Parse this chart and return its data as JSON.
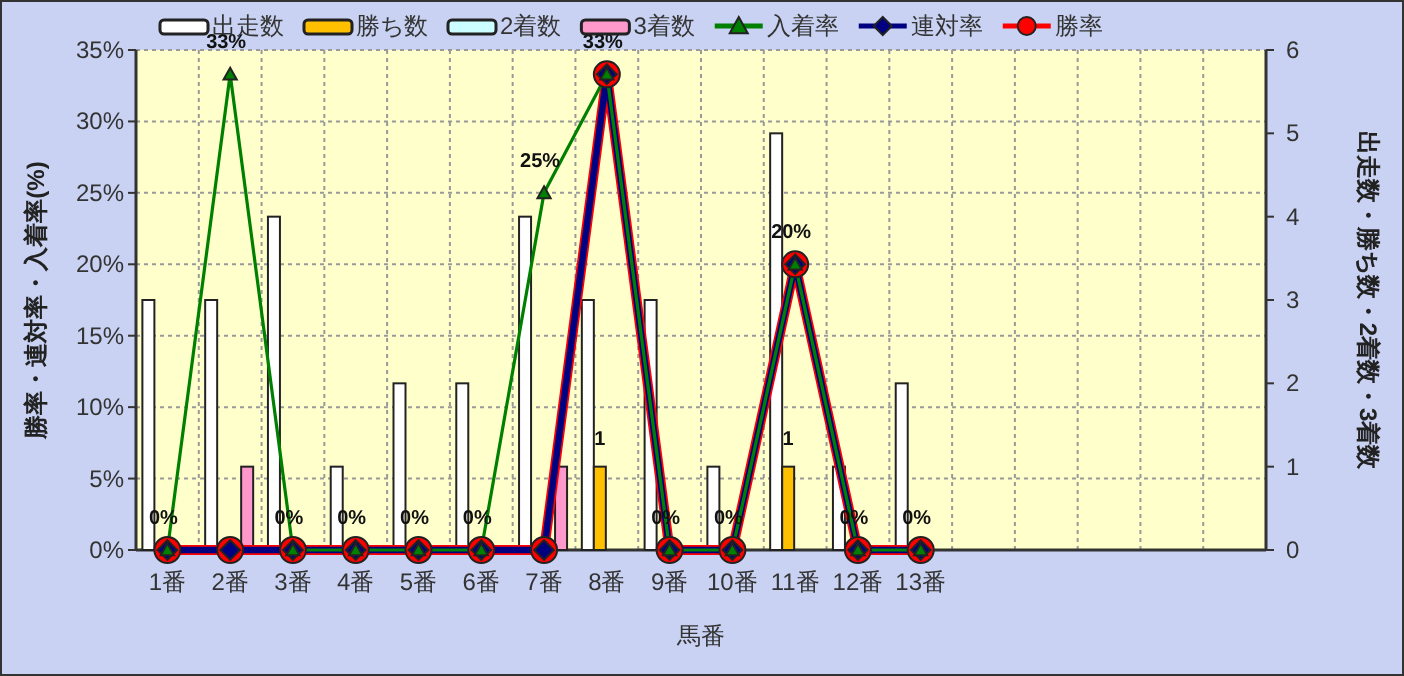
{
  "chart_data": {
    "type": "bar",
    "xlabel": "馬番",
    "ylabel": "勝率・連対率・入着率(%)",
    "y2label": "出走数・勝ち数・2着数・3着数",
    "categories": [
      "1番",
      "2番",
      "3番",
      "4番",
      "5番",
      "6番",
      "7番",
      "8番",
      "9番",
      "10番",
      "11番",
      "12番",
      "13番",
      null,
      null,
      null,
      null,
      null
    ],
    "series": [
      {
        "name": "出走数",
        "axis": "y2",
        "color": "#ffffff",
        "values": [
          3,
          3,
          4,
          1,
          2,
          2,
          4,
          3,
          3,
          1,
          5,
          1,
          2,
          null,
          null,
          null,
          null,
          null
        ]
      },
      {
        "name": "勝ち数",
        "axis": "y2",
        "color": "#ffc000",
        "values": [
          0,
          0,
          0,
          0,
          0,
          0,
          0,
          1,
          0,
          0,
          1,
          0,
          0,
          null,
          null,
          null,
          null,
          null
        ],
        "value_labels": [
          null,
          null,
          null,
          null,
          null,
          null,
          null,
          "1",
          null,
          null,
          "1",
          null,
          null,
          null,
          null,
          null,
          null,
          null
        ]
      },
      {
        "name": "2着数",
        "axis": "y2",
        "color": "#ccffff",
        "values": [
          0,
          0,
          0,
          0,
          0,
          0,
          0,
          0,
          0,
          0,
          0,
          0,
          0,
          null,
          null,
          null,
          null,
          null
        ]
      },
      {
        "name": "3着数",
        "axis": "y2",
        "color": "#ff99cc",
        "values": [
          0,
          1,
          0,
          0,
          0,
          0,
          1,
          0,
          0,
          0,
          0,
          0,
          0,
          null,
          null,
          null,
          null,
          null
        ]
      },
      {
        "name": "入着率",
        "type": "line",
        "axis": "y",
        "marker": "triangle",
        "color": "#008000",
        "values": [
          0,
          33.3,
          0,
          0,
          0,
          0,
          25,
          33.3,
          0,
          0,
          20,
          0,
          0,
          null,
          null,
          null,
          null,
          null
        ],
        "value_labels": [
          "0%",
          "33%",
          "0%",
          "0%",
          "0%",
          "0%",
          "25%",
          "33%",
          "0%",
          "0%",
          "20%",
          "0%",
          "0%",
          null,
          null,
          null,
          null,
          null
        ]
      },
      {
        "name": "連対率",
        "type": "line",
        "axis": "y",
        "marker": "diamond",
        "color": "#000080",
        "values": [
          0,
          0,
          0,
          0,
          0,
          0,
          0,
          33.3,
          0,
          0,
          20,
          0,
          0,
          null,
          null,
          null,
          null,
          null
        ]
      },
      {
        "name": "勝率",
        "type": "line",
        "axis": "y",
        "marker": "circle",
        "color": "#ff0000",
        "values": [
          0,
          0,
          0,
          0,
          0,
          0,
          0,
          33.3,
          0,
          0,
          20,
          0,
          0,
          null,
          null,
          null,
          null,
          null
        ]
      }
    ],
    "ylim": [
      0,
      35
    ],
    "yticks": [
      {
        "value": 0,
        "label": "0%"
      },
      {
        "value": 5,
        "label": "5%"
      },
      {
        "value": 10,
        "label": "10%"
      },
      {
        "value": 15,
        "label": "15%"
      },
      {
        "value": 20,
        "label": "20%"
      },
      {
        "value": 25,
        "label": "25%"
      },
      {
        "value": 30,
        "label": "30%"
      },
      {
        "value": 35,
        "label": "35%"
      }
    ],
    "y2lim": [
      0,
      6
    ],
    "y2ticks": [
      0,
      1,
      2,
      3,
      4,
      5,
      6
    ],
    "grid": true,
    "legend": "top",
    "line_style": "solid"
  }
}
